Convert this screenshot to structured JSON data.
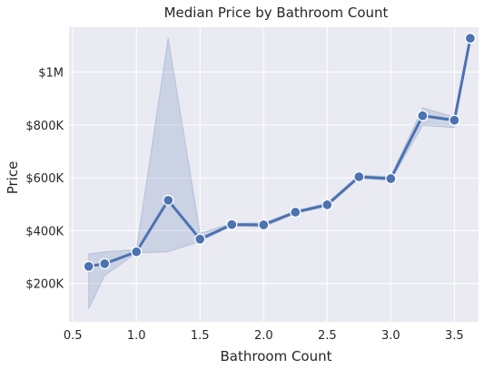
{
  "chart_data": {
    "type": "line",
    "title": "Median Price by Bathroom Count",
    "xlabel": "Bathroom Count",
    "ylabel": "Price",
    "xlim": [
      0.47,
      3.69
    ],
    "ylim": [
      55000,
      1170000
    ],
    "x_ticks": [
      0.5,
      1.0,
      1.5,
      2.0,
      2.5,
      3.0,
      3.5
    ],
    "x_tick_labels": [
      "0.5",
      "1.0",
      "1.5",
      "2.0",
      "2.5",
      "3.0",
      "3.5"
    ],
    "y_ticks": [
      200000,
      400000,
      600000,
      800000,
      1000000
    ],
    "y_tick_labels": [
      "$200K",
      "$400K",
      "$600K",
      "$800K",
      "$1M"
    ],
    "grid": true,
    "series": [
      {
        "x": [
          0.625,
          0.75,
          1.0,
          1.25,
          1.5,
          1.75,
          2.0,
          2.25,
          2.5,
          2.75,
          3.0,
          3.25,
          3.5,
          3.625
        ],
        "values": [
          265000,
          275000,
          320000,
          515000,
          368000,
          423000,
          422000,
          470000,
          498000,
          604000,
          597000,
          835000,
          818000,
          1128000
        ],
        "ci_low": [
          105000,
          230000,
          315000,
          320000,
          360000,
          418000,
          414000,
          465000,
          492000,
          598000,
          590000,
          798000,
          790000,
          1128000
        ],
        "ci_high": [
          312000,
          320000,
          328000,
          1130000,
          390000,
          428000,
          430000,
          475000,
          505000,
          610000,
          605000,
          865000,
          830000,
          1128000
        ]
      }
    ],
    "colors": {
      "line": "#4c72b0",
      "band": "#4c72b0",
      "plot_bg": "#eaeaf2",
      "grid": "#ffffff"
    }
  }
}
